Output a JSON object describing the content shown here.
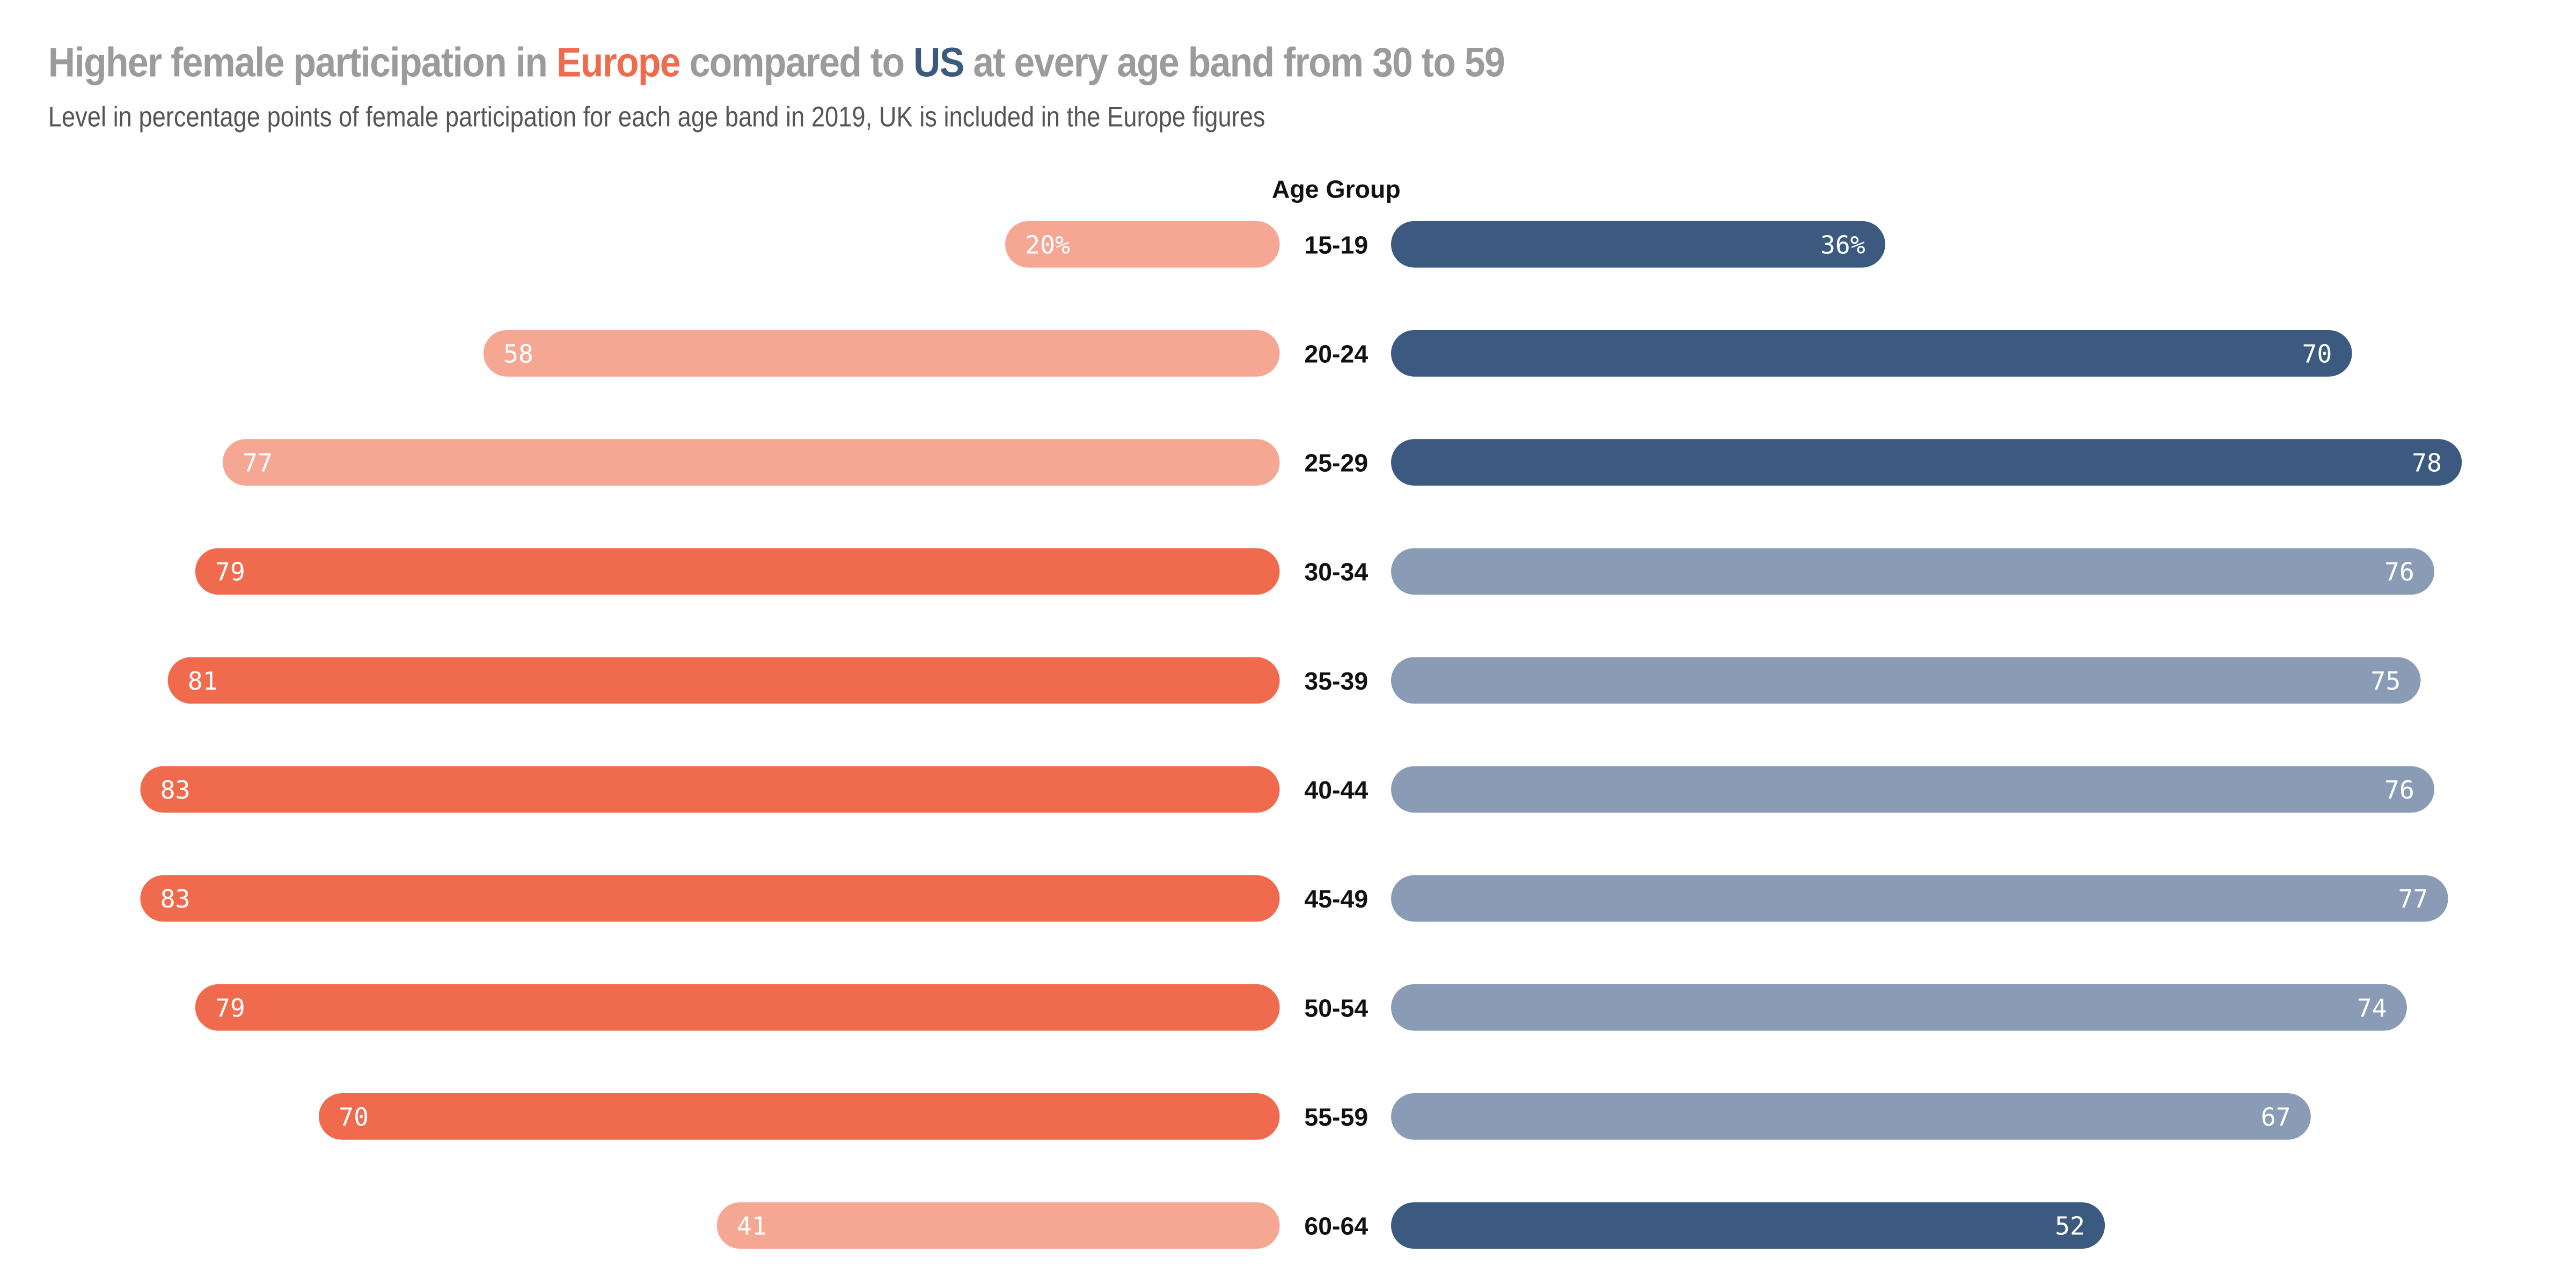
{
  "title": {
    "prefix": "Higher female participation in ",
    "europe": "Europe",
    "middle": " compared to ",
    "us": "US",
    "suffix": " at every age band from 30 to 59"
  },
  "subtitle": "Level in percentage points of female participation for each age band in 2019, UK is included in the Europe figures",
  "colors": {
    "europe_highlight": "#f06b4e",
    "europe_muted": "#f5a794",
    "us_highlight": "#3c5a80",
    "us_muted": "#8a9cb5",
    "title_gray": "#9b9b9b"
  },
  "chart_data": {
    "type": "bar",
    "orientation": "diverging-horizontal",
    "category_axis_label": "Age Group",
    "categories": [
      "15-19",
      "20-24",
      "25-29",
      "30-34",
      "35-39",
      "40-44",
      "45-49",
      "50-54",
      "55-59",
      "60-64"
    ],
    "series": [
      {
        "name": "Europe",
        "side": "left",
        "values": [
          20,
          58,
          77,
          79,
          81,
          83,
          83,
          79,
          70,
          41
        ],
        "labels": [
          "20%",
          "58",
          "77",
          "79",
          "81",
          "83",
          "83",
          "79",
          "70",
          "41"
        ],
        "highlighted": [
          false,
          false,
          false,
          true,
          true,
          true,
          true,
          true,
          true,
          false
        ]
      },
      {
        "name": "US",
        "side": "right",
        "values": [
          36,
          70,
          78,
          76,
          75,
          76,
          77,
          74,
          67,
          52
        ],
        "labels": [
          "36%",
          "70",
          "78",
          "76",
          "75",
          "76",
          "77",
          "74",
          "67",
          "52"
        ],
        "highlighted": [
          true,
          true,
          true,
          false,
          false,
          false,
          false,
          false,
          false,
          true
        ]
      }
    ],
    "unit": "%",
    "grid": false,
    "legend": "none"
  }
}
